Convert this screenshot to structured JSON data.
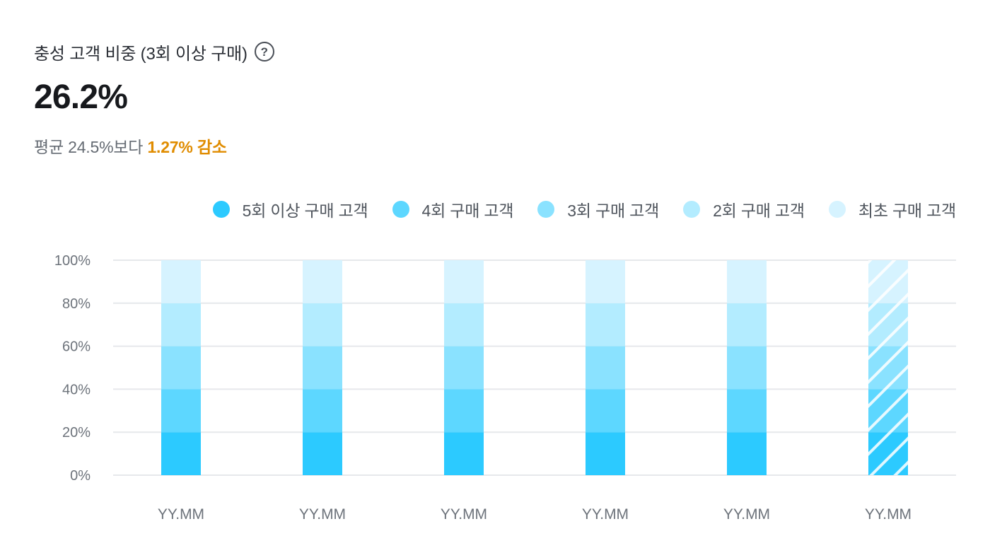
{
  "header": {
    "title": "충성 고객 비중 (3회 이상 구매)",
    "help_icon": "question-circle-icon",
    "value": "26.2%",
    "comparison_prefix": "평균 24.5%보다 ",
    "comparison_change": "1.27% 감소"
  },
  "colors": {
    "series_1": "#2ccaff",
    "series_2": "#5dd7ff",
    "series_3": "#8ae2ff",
    "series_4": "#b3ecff",
    "series_5": "#d6f3ff",
    "change_text": "#e08c00",
    "grid": "#e6e8eb"
  },
  "chart_data": {
    "type": "bar",
    "stacked": true,
    "categories": [
      "YY.MM",
      "YY.MM",
      "YY.MM",
      "YY.MM",
      "YY.MM",
      "YY.MM"
    ],
    "y_ticks": [
      "0%",
      "20%",
      "40%",
      "60%",
      "80%",
      "100%"
    ],
    "ylim": [
      0,
      100
    ],
    "grid": true,
    "legend_position": "top-right",
    "last_bar_pattern": "diagonal-stripes",
    "series": [
      {
        "name": "5회 이상 구매 고객",
        "values": [
          20,
          20,
          20,
          20,
          20,
          20
        ]
      },
      {
        "name": "4회 구매 고객",
        "values": [
          20,
          20,
          20,
          20,
          20,
          20
        ]
      },
      {
        "name": "3회 구매 고객",
        "values": [
          20,
          20,
          20,
          20,
          20,
          20
        ]
      },
      {
        "name": "2회 구매 고객",
        "values": [
          20,
          20,
          20,
          20,
          20,
          20
        ]
      },
      {
        "name": "최초 구매 고객",
        "values": [
          20,
          20,
          20,
          20,
          20,
          20
        ]
      }
    ]
  }
}
